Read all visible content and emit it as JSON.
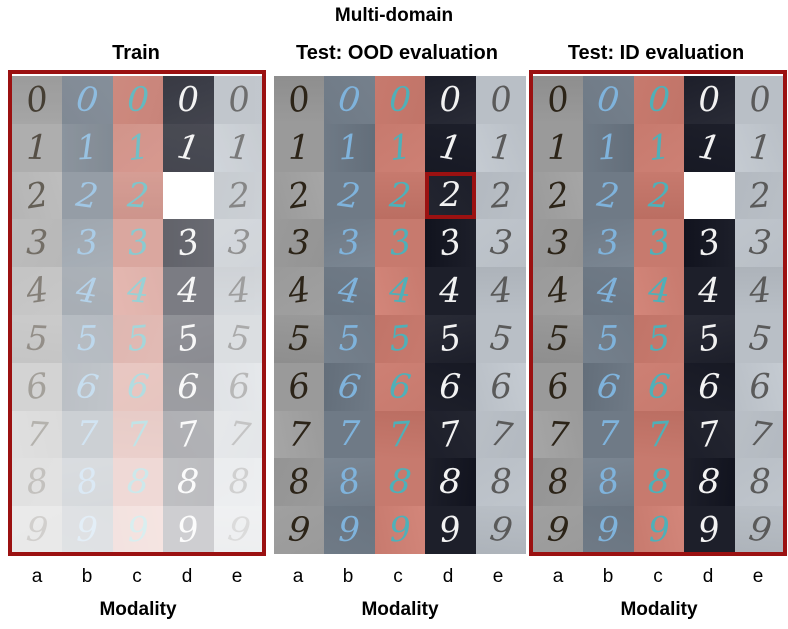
{
  "figure_title": "Multi-domain",
  "panels": [
    {
      "id": "train",
      "title": "Train",
      "faded": true,
      "missing": [
        [
          2,
          3
        ]
      ],
      "highlight": null,
      "framed": true
    },
    {
      "id": "ood",
      "title": "Test: OOD evaluation",
      "faded": false,
      "missing": [],
      "highlight": [
        2,
        3
      ],
      "framed": false
    },
    {
      "id": "id",
      "title": "Test: ID evaluation",
      "faded": false,
      "missing": [
        [
          2,
          3
        ]
      ],
      "highlight": null,
      "framed": true
    }
  ],
  "digits": [
    "0",
    "1",
    "2",
    "3",
    "4",
    "5",
    "6",
    "7",
    "8",
    "9"
  ],
  "modalities": [
    "a",
    "b",
    "c",
    "d",
    "e"
  ],
  "axis_label": "Modality",
  "colors": {
    "frame": "#9b1111",
    "modality_bg": [
      "#9a9a9a",
      "#6f7a86",
      "#c77a6e",
      "#1d1f2a",
      "#b9bfc6"
    ],
    "modality_fg": [
      "#2c2418",
      "#7fb3dc",
      "#4fb0b8",
      "#f2f2f2",
      "#5a5a5a"
    ]
  }
}
